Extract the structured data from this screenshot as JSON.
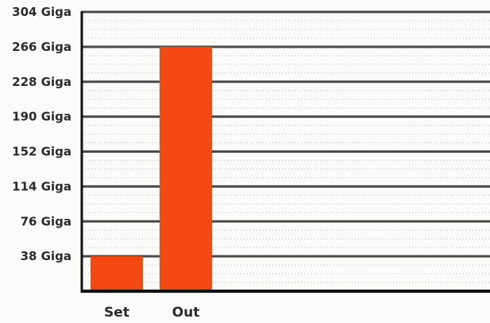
{
  "chart_data": {
    "type": "bar",
    "categories": [
      "Set",
      "Out"
    ],
    "values": [
      38,
      266
    ],
    "unit_suffix": " Giga",
    "y_ticks": [
      38,
      76,
      114,
      152,
      190,
      228,
      266,
      304
    ],
    "y_tick_labels": [
      "38 Giga",
      "76 Giga",
      "114 Giga",
      "152 Giga",
      "190 Giga",
      "228 Giga",
      "266 Giga",
      "304 Giga"
    ],
    "ylim": [
      0,
      304
    ],
    "grid": true,
    "legend": "none",
    "bar_color": "#f24a12",
    "gridline_color": "#4a4a4a",
    "axis_color": "#111111"
  }
}
